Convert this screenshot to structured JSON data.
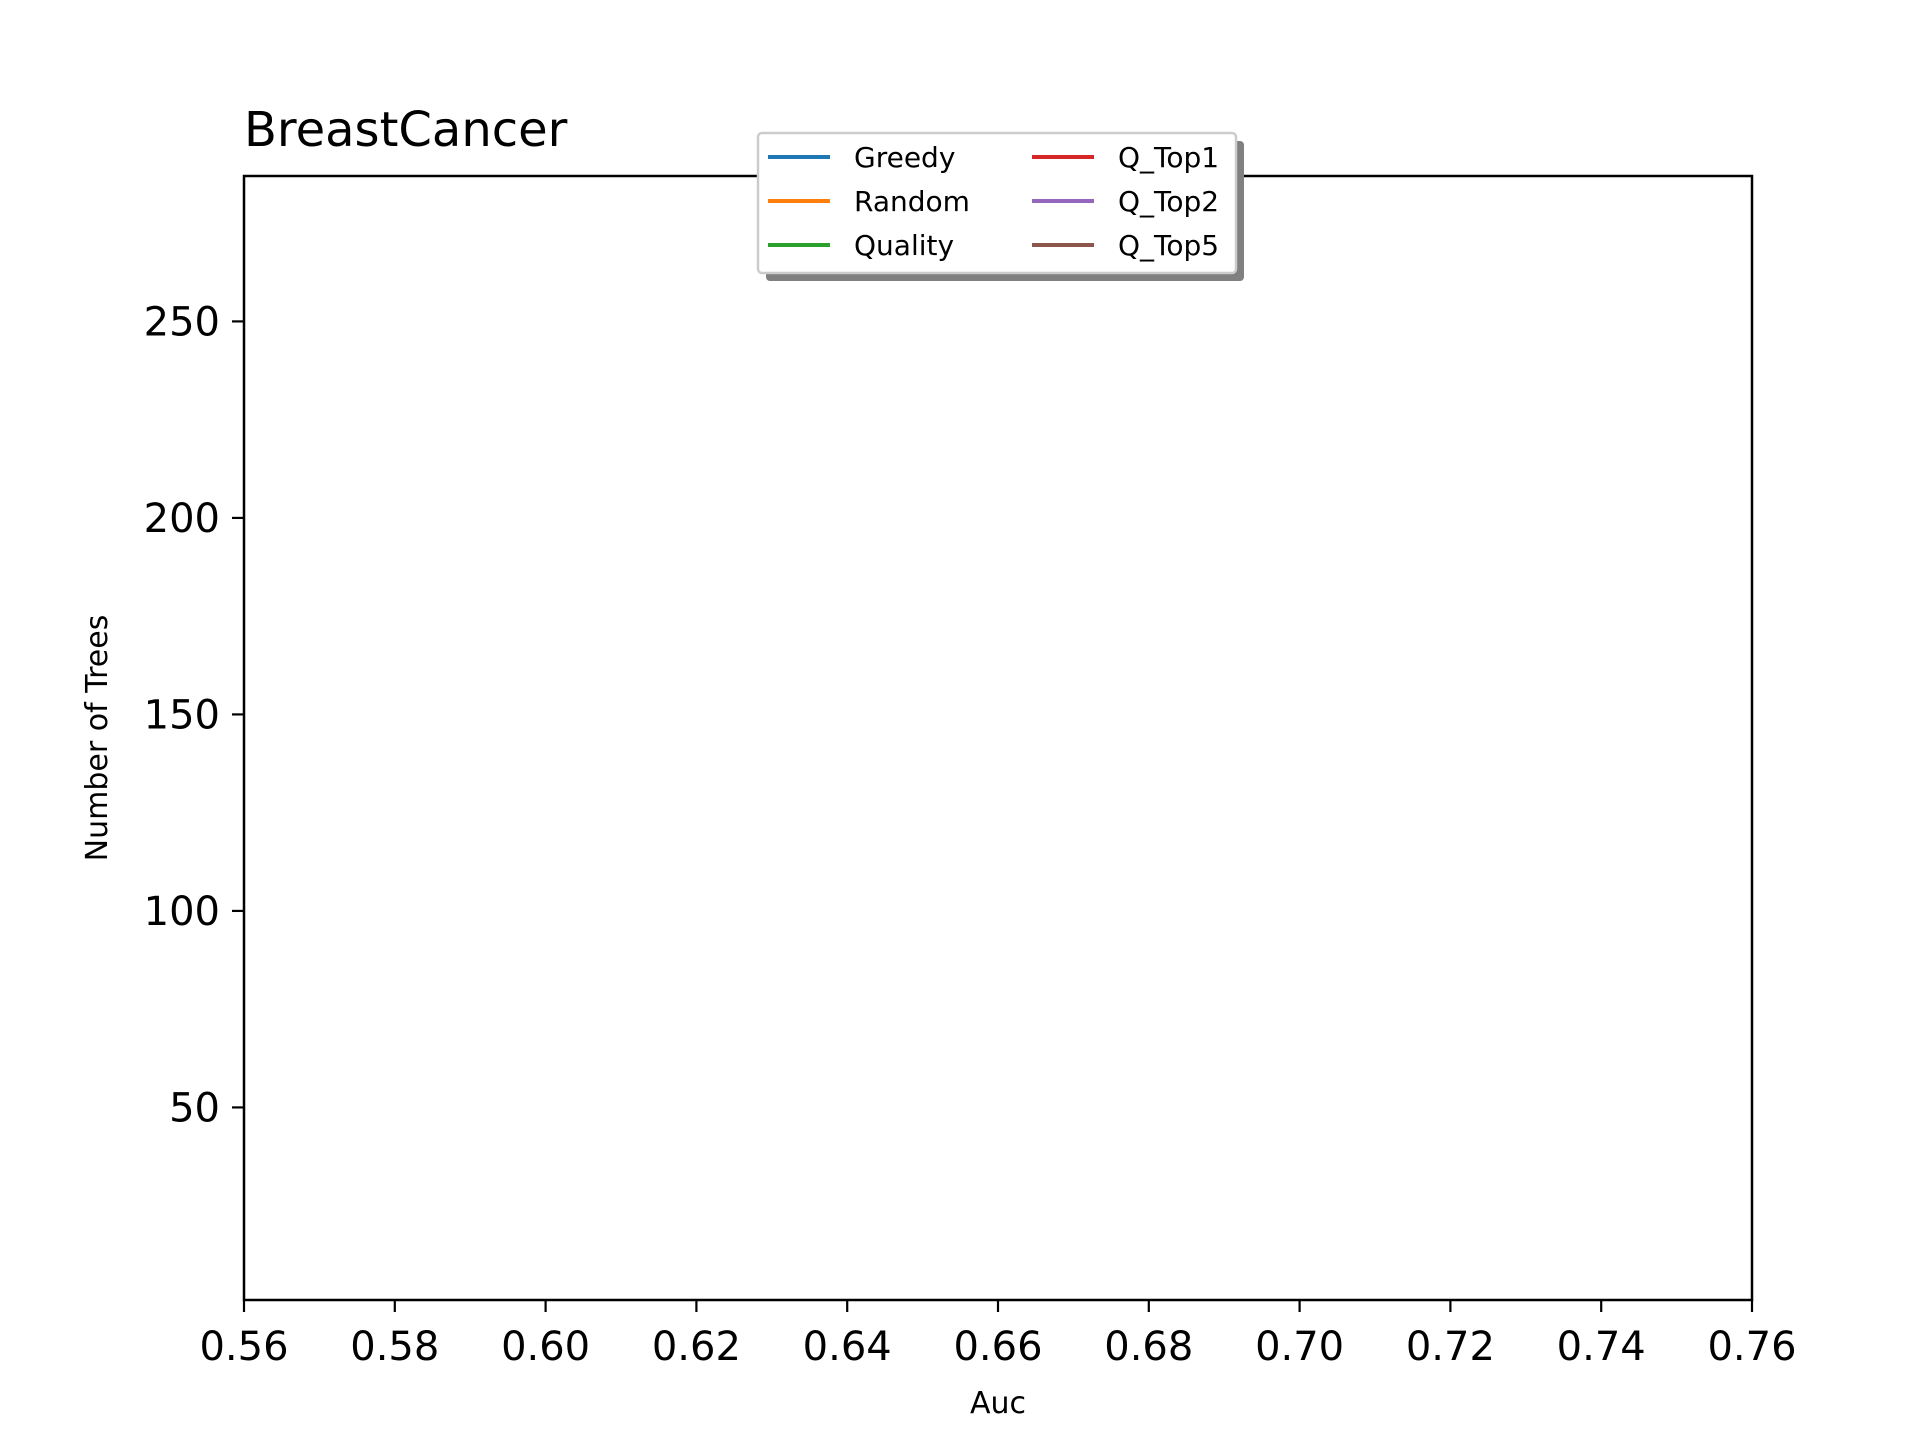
{
  "chart_data": {
    "type": "line",
    "title": "BreastCancer",
    "xlabel": "Auc",
    "ylabel": "Number of Trees",
    "xlim": [
      0.56,
      0.76
    ],
    "ylim": [
      1,
      287
    ],
    "xticks": [
      0.56,
      0.58,
      0.6,
      0.62,
      0.64,
      0.66,
      0.68,
      0.7,
      0.72,
      0.74,
      0.76
    ],
    "xtick_labels": [
      "0.56",
      "0.58",
      "0.60",
      "0.62",
      "0.64",
      "0.66",
      "0.68",
      "0.70",
      "0.72",
      "0.74",
      "0.76"
    ],
    "yticks": [
      50,
      100,
      150,
      200,
      250
    ],
    "ytick_labels": [
      "50",
      "100",
      "150",
      "200",
      "250"
    ],
    "grid": false,
    "legend_position": "upper-center",
    "legend_columns": 2,
    "series": [
      {
        "name": "Greedy",
        "color": "#1f77b4",
        "x": [],
        "y": []
      },
      {
        "name": "Random",
        "color": "#ff7f0e",
        "x": [],
        "y": []
      },
      {
        "name": "Quality",
        "color": "#2ca02c",
        "x": [],
        "y": []
      },
      {
        "name": "Q_Top1",
        "color": "#d62728",
        "x": [],
        "y": []
      },
      {
        "name": "Q_Top2",
        "color": "#9467bd",
        "x": [],
        "y": []
      },
      {
        "name": "Q_Top5",
        "color": "#8c564b",
        "x": [],
        "y": []
      }
    ]
  }
}
